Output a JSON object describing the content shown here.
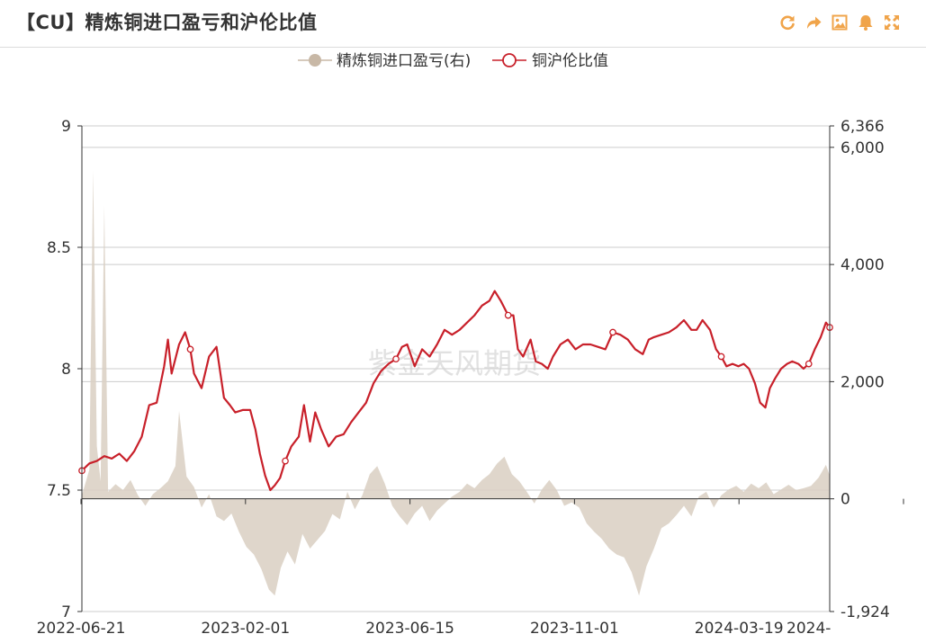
{
  "header": {
    "title": "【CU】精炼铜进口盈亏和沪伦比值"
  },
  "toolbar": [
    {
      "icon": "refresh-icon"
    },
    {
      "icon": "share-icon"
    },
    {
      "icon": "save-image-icon"
    },
    {
      "icon": "alert-bell-icon"
    },
    {
      "icon": "fullscreen-icon"
    }
  ],
  "colors": {
    "accent_orange": "#F0A44A",
    "ratio_line": "#C8202A",
    "profit_area": "#D9CFC2",
    "profit_legend": "#C8B8A6",
    "grid": "#cccccc",
    "axis": "#333333"
  },
  "watermark": "紫金天风期货",
  "chart_data": {
    "type": "line",
    "legend": [
      {
        "name": "精炼铜进口盈亏(右)",
        "style": "area",
        "color": "#C8B8A6"
      },
      {
        "name": "铜沪伦比值",
        "style": "line",
        "color": "#C8202A"
      }
    ],
    "legend_position": "top-center",
    "x_tick_labels": [
      "2022-06-21",
      "2023-02-01",
      "2023-06-15",
      "2023-11-01",
      "2024-03-19",
      "2024-"
    ],
    "left_axis": {
      "min": 7,
      "max": 9,
      "ticks": [
        "7",
        "7.5",
        "8",
        "8.5",
        "9"
      ]
    },
    "right_axis": {
      "min": -1924,
      "max": 6366,
      "ticks": [
        "-1,924",
        "0",
        "2,000",
        "4,000",
        "6,000",
        "6,366"
      ]
    },
    "grid": true,
    "series": [
      {
        "name": "铜沪伦比值",
        "axis": "left",
        "points": [
          [
            0.0,
            7.58
          ],
          [
            0.01,
            7.61
          ],
          [
            0.02,
            7.62
          ],
          [
            0.03,
            7.64
          ],
          [
            0.04,
            7.63
          ],
          [
            0.05,
            7.65
          ],
          [
            0.06,
            7.62
          ],
          [
            0.07,
            7.66
          ],
          [
            0.08,
            7.72
          ],
          [
            0.09,
            7.85
          ],
          [
            0.1,
            7.86
          ],
          [
            0.11,
            8.01
          ],
          [
            0.115,
            8.12
          ],
          [
            0.12,
            7.98
          ],
          [
            0.13,
            8.1
          ],
          [
            0.138,
            8.15
          ],
          [
            0.145,
            8.08
          ],
          [
            0.15,
            7.98
          ],
          [
            0.16,
            7.92
          ],
          [
            0.17,
            8.05
          ],
          [
            0.18,
            8.09
          ],
          [
            0.19,
            7.88
          ],
          [
            0.198,
            7.85
          ],
          [
            0.205,
            7.82
          ],
          [
            0.215,
            7.83
          ],
          [
            0.225,
            7.83
          ],
          [
            0.232,
            7.75
          ],
          [
            0.238,
            7.65
          ],
          [
            0.245,
            7.56
          ],
          [
            0.252,
            7.5
          ],
          [
            0.258,
            7.52
          ],
          [
            0.265,
            7.55
          ],
          [
            0.272,
            7.62
          ],
          [
            0.28,
            7.68
          ],
          [
            0.29,
            7.72
          ],
          [
            0.297,
            7.85
          ],
          [
            0.305,
            7.7
          ],
          [
            0.312,
            7.82
          ],
          [
            0.32,
            7.75
          ],
          [
            0.33,
            7.68
          ],
          [
            0.34,
            7.72
          ],
          [
            0.35,
            7.73
          ],
          [
            0.36,
            7.78
          ],
          [
            0.37,
            7.82
          ],
          [
            0.38,
            7.86
          ],
          [
            0.39,
            7.94
          ],
          [
            0.4,
            7.99
          ],
          [
            0.41,
            8.02
          ],
          [
            0.42,
            8.04
          ],
          [
            0.428,
            8.09
          ],
          [
            0.435,
            8.1
          ],
          [
            0.445,
            8.01
          ],
          [
            0.455,
            8.08
          ],
          [
            0.465,
            8.05
          ],
          [
            0.475,
            8.1
          ],
          [
            0.485,
            8.16
          ],
          [
            0.495,
            8.14
          ],
          [
            0.505,
            8.16
          ],
          [
            0.515,
            8.19
          ],
          [
            0.525,
            8.22
          ],
          [
            0.535,
            8.26
          ],
          [
            0.545,
            8.28
          ],
          [
            0.552,
            8.32
          ],
          [
            0.56,
            8.28
          ],
          [
            0.57,
            8.22
          ],
          [
            0.577,
            8.22
          ],
          [
            0.583,
            8.08
          ],
          [
            0.59,
            8.05
          ],
          [
            0.6,
            8.12
          ],
          [
            0.607,
            8.03
          ],
          [
            0.615,
            8.02
          ],
          [
            0.623,
            8.0
          ],
          [
            0.63,
            8.05
          ],
          [
            0.64,
            8.1
          ],
          [
            0.65,
            8.12
          ],
          [
            0.66,
            8.08
          ],
          [
            0.67,
            8.1
          ],
          [
            0.68,
            8.1
          ],
          [
            0.69,
            8.09
          ],
          [
            0.7,
            8.08
          ],
          [
            0.71,
            8.15
          ],
          [
            0.72,
            8.14
          ],
          [
            0.73,
            8.12
          ],
          [
            0.74,
            8.08
          ],
          [
            0.75,
            8.06
          ],
          [
            0.758,
            8.12
          ],
          [
            0.765,
            8.13
          ],
          [
            0.775,
            8.14
          ],
          [
            0.785,
            8.15
          ],
          [
            0.795,
            8.17
          ],
          [
            0.805,
            8.2
          ],
          [
            0.815,
            8.16
          ],
          [
            0.822,
            8.16
          ],
          [
            0.83,
            8.2
          ],
          [
            0.84,
            8.16
          ],
          [
            0.848,
            8.08
          ],
          [
            0.855,
            8.05
          ],
          [
            0.862,
            8.01
          ],
          [
            0.87,
            8.02
          ],
          [
            0.878,
            8.01
          ],
          [
            0.885,
            8.02
          ],
          [
            0.892,
            8.0
          ],
          [
            0.9,
            7.94
          ],
          [
            0.907,
            7.86
          ],
          [
            0.914,
            7.84
          ],
          [
            0.92,
            7.92
          ],
          [
            0.927,
            7.96
          ],
          [
            0.935,
            8.0
          ],
          [
            0.943,
            8.02
          ],
          [
            0.95,
            8.03
          ],
          [
            0.958,
            8.02
          ],
          [
            0.965,
            8.0
          ],
          [
            0.972,
            8.02
          ],
          [
            0.98,
            8.08
          ],
          [
            0.988,
            8.13
          ],
          [
            0.995,
            8.19
          ],
          [
            1.0,
            8.17
          ]
        ]
      },
      {
        "name": "精炼铜进口盈亏(右)",
        "axis": "right",
        "points": [
          [
            0.0,
            60
          ],
          [
            0.01,
            500
          ],
          [
            0.015,
            5600
          ],
          [
            0.02,
            900
          ],
          [
            0.025,
            300
          ],
          [
            0.03,
            5000
          ],
          [
            0.035,
            120
          ],
          [
            0.045,
            250
          ],
          [
            0.055,
            150
          ],
          [
            0.065,
            320
          ],
          [
            0.075,
            60
          ],
          [
            0.085,
            -120
          ],
          [
            0.095,
            80
          ],
          [
            0.105,
            180
          ],
          [
            0.115,
            300
          ],
          [
            0.125,
            560
          ],
          [
            0.13,
            1500
          ],
          [
            0.14,
            380
          ],
          [
            0.15,
            200
          ],
          [
            0.16,
            -150
          ],
          [
            0.17,
            80
          ],
          [
            0.18,
            -300
          ],
          [
            0.19,
            -380
          ],
          [
            0.2,
            -250
          ],
          [
            0.21,
            -560
          ],
          [
            0.22,
            -820
          ],
          [
            0.23,
            -950
          ],
          [
            0.24,
            -1200
          ],
          [
            0.25,
            -1550
          ],
          [
            0.258,
            -1650
          ],
          [
            0.266,
            -1180
          ],
          [
            0.275,
            -900
          ],
          [
            0.285,
            -1120
          ],
          [
            0.295,
            -600
          ],
          [
            0.305,
            -850
          ],
          [
            0.315,
            -700
          ],
          [
            0.325,
            -550
          ],
          [
            0.335,
            -260
          ],
          [
            0.345,
            -350
          ],
          [
            0.355,
            120
          ],
          [
            0.365,
            -180
          ],
          [
            0.375,
            60
          ],
          [
            0.385,
            420
          ],
          [
            0.395,
            560
          ],
          [
            0.405,
            260
          ],
          [
            0.415,
            -120
          ],
          [
            0.425,
            -300
          ],
          [
            0.435,
            -450
          ],
          [
            0.445,
            -250
          ],
          [
            0.455,
            -120
          ],
          [
            0.465,
            -380
          ],
          [
            0.475,
            -200
          ],
          [
            0.485,
            -80
          ],
          [
            0.495,
            40
          ],
          [
            0.505,
            120
          ],
          [
            0.515,
            260
          ],
          [
            0.525,
            180
          ],
          [
            0.535,
            320
          ],
          [
            0.545,
            420
          ],
          [
            0.555,
            600
          ],
          [
            0.565,
            720
          ],
          [
            0.575,
            420
          ],
          [
            0.585,
            300
          ],
          [
            0.595,
            120
          ],
          [
            0.605,
            -80
          ],
          [
            0.615,
            160
          ],
          [
            0.625,
            320
          ],
          [
            0.635,
            150
          ],
          [
            0.645,
            -120
          ],
          [
            0.655,
            -60
          ],
          [
            0.665,
            -150
          ],
          [
            0.675,
            -420
          ],
          [
            0.685,
            -560
          ],
          [
            0.695,
            -680
          ],
          [
            0.705,
            -850
          ],
          [
            0.715,
            -950
          ],
          [
            0.725,
            -1000
          ],
          [
            0.735,
            -1250
          ],
          [
            0.745,
            -1650
          ],
          [
            0.755,
            -1150
          ],
          [
            0.765,
            -850
          ],
          [
            0.775,
            -500
          ],
          [
            0.785,
            -420
          ],
          [
            0.795,
            -280
          ],
          [
            0.805,
            -120
          ],
          [
            0.815,
            -300
          ],
          [
            0.825,
            40
          ],
          [
            0.835,
            120
          ],
          [
            0.845,
            -150
          ],
          [
            0.855,
            60
          ],
          [
            0.865,
            160
          ],
          [
            0.875,
            220
          ],
          [
            0.885,
            120
          ],
          [
            0.895,
            260
          ],
          [
            0.905,
            180
          ],
          [
            0.915,
            280
          ],
          [
            0.925,
            80
          ],
          [
            0.935,
            160
          ],
          [
            0.945,
            240
          ],
          [
            0.955,
            150
          ],
          [
            0.965,
            180
          ],
          [
            0.975,
            220
          ],
          [
            0.985,
            360
          ],
          [
            0.995,
            580
          ],
          [
            1.0,
            400
          ]
        ]
      }
    ]
  }
}
